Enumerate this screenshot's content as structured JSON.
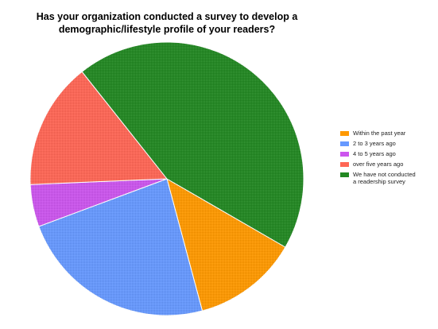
{
  "chart_data": {
    "type": "pie",
    "title_lines": [
      "Has your organization conducted a survey to develop a",
      "demographic/lifestyle profile of your readers?"
    ],
    "legend_position": "right",
    "categories": [
      "Within the past year",
      "2 to 3 years ago",
      "4 to 5 years ago",
      "over five years ago",
      "We have not conducted\na readership survey"
    ],
    "values": [
      12.5,
      23.5,
      5.0,
      15.0,
      44.0
    ],
    "colors": [
      "#FF9900",
      "#6699FF",
      "#CC55EE",
      "#FF6655",
      "#228822"
    ],
    "start_angle_deg": 30,
    "direction": "clockwise"
  }
}
